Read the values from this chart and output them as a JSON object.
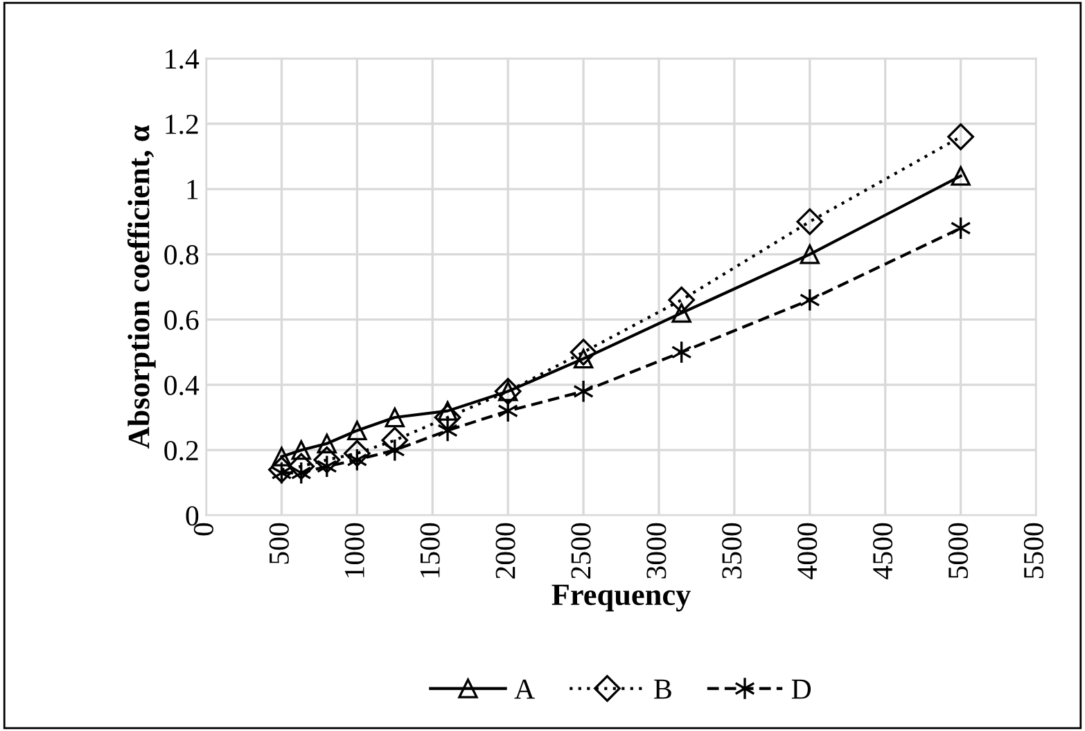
{
  "chart_data": {
    "type": "line",
    "xlabel": "Frequency",
    "ylabel": "Absorption coefficient, α",
    "x": [
      500,
      630,
      800,
      1000,
      1250,
      1600,
      2000,
      2500,
      3150,
      4000,
      5000
    ],
    "series": [
      {
        "name": "A",
        "color": "#000000",
        "marker": "triangle",
        "line_style": "solid",
        "values": [
          0.18,
          0.2,
          0.22,
          0.26,
          0.3,
          0.32,
          0.38,
          0.48,
          0.62,
          0.8,
          1.04
        ]
      },
      {
        "name": "B",
        "color": "#000000",
        "marker": "diamond",
        "line_style": "dotted",
        "values": [
          0.14,
          0.15,
          0.17,
          0.19,
          0.23,
          0.3,
          0.38,
          0.5,
          0.66,
          0.9,
          1.16
        ]
      },
      {
        "name": "D",
        "color": "#000000",
        "marker": "cross",
        "line_style": "dashed",
        "values": [
          0.13,
          0.13,
          0.15,
          0.17,
          0.2,
          0.26,
          0.32,
          0.38,
          0.5,
          0.66,
          0.88
        ]
      }
    ],
    "xlim": [
      0,
      5500
    ],
    "xticks": [
      0,
      500,
      1000,
      1500,
      2000,
      2500,
      3000,
      3500,
      4000,
      4500,
      5000,
      5500
    ],
    "ylim": [
      0,
      1.4
    ],
    "yticks": [
      0,
      0.2,
      0.4,
      0.6,
      0.8,
      1,
      1.2,
      1.4
    ],
    "grid": true,
    "legend": "bottom"
  }
}
